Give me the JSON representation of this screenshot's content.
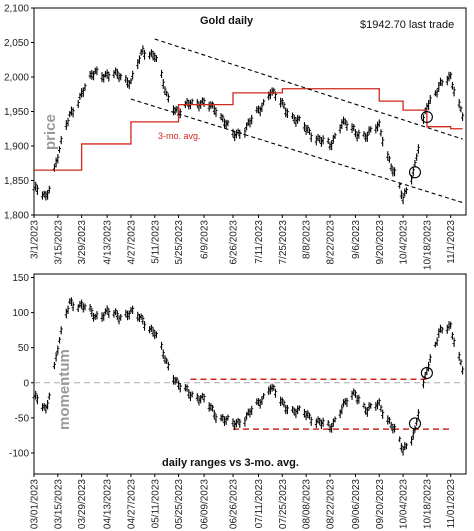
{
  "chart_data": [
    {
      "type": "line",
      "title": "Gold daily",
      "note": "$1942.70 last trade",
      "ylabel": "price",
      "ylim": [
        1800,
        2100
      ],
      "yticks": [
        "1,800",
        "1,850",
        "1,900",
        "1,950",
        "2,000",
        "2,050",
        "2,100"
      ],
      "xticks": [
        "3/1/2023",
        "3/15/2023",
        "3/29/2023",
        "4/13/2023",
        "4/27/2023",
        "5/11/2023",
        "5/25/2023",
        "6/9/2023",
        "6/26/2023",
        "7/11/2023",
        "7/25/2023",
        "8/8/2023",
        "8/22/2023",
        "9/6/2023",
        "9/20/2023",
        "10/4/2023",
        "10/18/2023",
        "11/1/2023"
      ],
      "grid": false,
      "series": [
        {
          "kind": "daily price bars",
          "color": "#000000",
          "x": [
            "3/1/2023",
            "3/8/2023",
            "3/15/2023",
            "3/22/2023",
            "3/29/2023",
            "4/6/2023",
            "4/13/2023",
            "4/20/2023",
            "4/27/2023",
            "5/4/2023",
            "5/11/2023",
            "5/18/2023",
            "5/25/2023",
            "6/1/2023",
            "6/9/2023",
            "6/16/2023",
            "6/26/2023",
            "7/3/2023",
            "7/11/2023",
            "7/18/2023",
            "7/25/2023",
            "8/1/2023",
            "8/8/2023",
            "8/15/2023",
            "8/22/2023",
            "8/29/2023",
            "9/6/2023",
            "9/13/2023",
            "9/20/2023",
            "9/27/2023",
            "10/4/2023",
            "10/11/2023",
            "10/18/2023",
            "10/25/2023",
            "11/1/2023",
            "11/8/2023"
          ],
          "values": [
            1838,
            1825,
            1885,
            1945,
            1975,
            2010,
            2000,
            2005,
            1990,
            2040,
            2030,
            1975,
            1945,
            1965,
            1960,
            1955,
            1915,
            1925,
            1950,
            1980,
            1960,
            1940,
            1925,
            1910,
            1900,
            1935,
            1920,
            1915,
            1930,
            1870,
            1825,
            1870,
            1960,
            1985,
            2000,
            1945
          ]
        },
        {
          "name": "3-mo. avg.",
          "kind": "step",
          "color": "#d0281c",
          "x": [
            "3/1/2023",
            "3/15/2023",
            "3/29/2023",
            "4/27/2023",
            "5/25/2023",
            "6/26/2023",
            "7/25/2023",
            "9/20/2023",
            "10/4/2023",
            "10/18/2023",
            "11/1/2023",
            "11/8/2023"
          ],
          "values": [
            1865,
            1865,
            1903,
            1935,
            1960,
            1977,
            1983,
            1965,
            1952,
            1928,
            1925,
            1925
          ]
        }
      ],
      "trendlines": [
        {
          "style": "dashed",
          "color": "#000000",
          "from": {
            "x": "5/11/2023",
            "y": 2055
          },
          "to": {
            "x": "11/8/2023",
            "y": 1910
          }
        },
        {
          "style": "dashed",
          "color": "#000000",
          "from": {
            "x": "4/27/2023",
            "y": 1968
          },
          "to": {
            "x": "11/8/2023",
            "y": 1818
          }
        }
      ],
      "circle_markers": [
        {
          "x": "10/11/2023",
          "y": 1862
        },
        {
          "x": "10/18/2023",
          "y": 1942
        }
      ]
    },
    {
      "type": "line",
      "title": "daily ranges vs 3-mo. avg.",
      "ylabel": "momentum",
      "ylim": [
        -130,
        155
      ],
      "yticks": [
        "-100",
        "-50",
        "0",
        "50",
        "100",
        "150"
      ],
      "xticks": [
        "03/01/2023",
        "03/15/2023",
        "03/29/2023",
        "04/13/2023",
        "04/27/2023",
        "05/11/2023",
        "05/25/2023",
        "06/09/2023",
        "06/26/2023",
        "07/11/2023",
        "07/25/2023",
        "08/08/2023",
        "08/22/2023",
        "09/06/2023",
        "09/20/2023",
        "10/04/2023",
        "10/18/2023",
        "11/01/2023"
      ],
      "grid": false,
      "zero_line": {
        "y": 0,
        "style": "dashed",
        "color": "#aaaaaa"
      },
      "series": [
        {
          "kind": "daily range bars",
          "color": "#000000",
          "x": [
            "3/1/2023",
            "3/8/2023",
            "3/15/2023",
            "3/22/2023",
            "3/29/2023",
            "4/6/2023",
            "4/13/2023",
            "4/20/2023",
            "4/27/2023",
            "5/4/2023",
            "5/11/2023",
            "5/18/2023",
            "5/25/2023",
            "6/1/2023",
            "6/9/2023",
            "6/16/2023",
            "6/26/2023",
            "7/3/2023",
            "7/11/2023",
            "7/18/2023",
            "7/25/2023",
            "8/1/2023",
            "8/8/2023",
            "8/15/2023",
            "8/22/2023",
            "8/29/2023",
            "9/6/2023",
            "9/13/2023",
            "9/20/2023",
            "9/27/2023",
            "10/4/2023",
            "10/11/2023",
            "10/18/2023",
            "10/25/2023",
            "11/1/2023",
            "11/8/2023"
          ],
          "values": [
            -20,
            -40,
            50,
            115,
            110,
            95,
            100,
            95,
            100,
            90,
            70,
            30,
            -5,
            -15,
            -25,
            -45,
            -60,
            -50,
            -30,
            -5,
            -30,
            -40,
            -45,
            -55,
            -65,
            -35,
            -15,
            -40,
            -30,
            -60,
            -95,
            -70,
            20,
            70,
            80,
            20
          ]
        }
      ],
      "reference_lines": [
        {
          "style": "dashed",
          "color": "#d0281c",
          "y": 5,
          "from": "6/1/2023",
          "to": "10/18/2023"
        },
        {
          "style": "dashed",
          "color": "#d0281c",
          "y": -66,
          "from": "6/26/2023",
          "to": "11/1/2023"
        }
      ],
      "circle_markers": [
        {
          "x": "10/11/2023",
          "y": -58
        },
        {
          "x": "10/18/2023",
          "y": 14
        }
      ]
    }
  ]
}
